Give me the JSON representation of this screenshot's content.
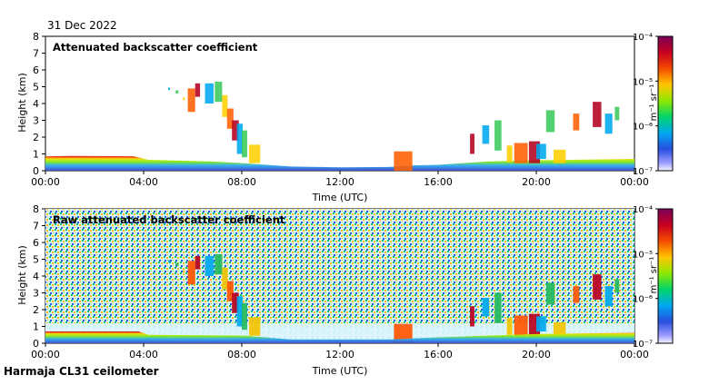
{
  "date_label": "31 Dec 2022",
  "footer_label": "Harmaja CL31 ceilometer",
  "colors": {
    "bar_stops": [
      "#7A0058",
      "#C70020",
      "#F54C00",
      "#FFC600",
      "#8EE800",
      "#00D46B",
      "#00A8F0",
      "#294FDF",
      "#9A9AFF",
      "#F6F6FF"
    ],
    "surface_band": [
      "#3A46C8",
      "#2AA8F2",
      "#7FEA18",
      "#EDE100",
      "#FF4D00",
      "#B40020"
    ]
  },
  "chart_data": [
    {
      "type": "heatmap",
      "title": "Attenuated backscatter coefficient",
      "xlabel": "Time (UTC)",
      "ylabel": "Height (km)",
      "xlim": [
        "00:00",
        "00:00"
      ],
      "ylim": [
        0,
        8
      ],
      "x_ticks": [
        "00:00",
        "04:00",
        "08:00",
        "12:00",
        "16:00",
        "20:00",
        "00:00"
      ],
      "y_ticks": [
        0,
        1,
        2,
        3,
        4,
        5,
        6,
        7,
        8
      ],
      "colorbar": {
        "label": "m⁻¹ sr⁻¹",
        "ticks": [
          "10⁻⁴",
          "10⁻⁵",
          "10⁻⁶",
          "10⁻⁷"
        ],
        "range": [
          1e-07,
          0.0001
        ],
        "scale": "log"
      },
      "structures": {
        "boundary_layer": [
          {
            "x": 0.0,
            "y": 0.85
          },
          {
            "x": 1.0,
            "y": 0.88
          },
          {
            "x": 3.6,
            "y": 0.86
          },
          {
            "x": 4.2,
            "y": 0.65
          },
          {
            "x": 6.8,
            "y": 0.55
          },
          {
            "x": 8.0,
            "y": 0.45
          },
          {
            "x": 9.0,
            "y": 0.35
          },
          {
            "x": 10.0,
            "y": 0.25
          },
          {
            "x": 12.0,
            "y": 0.2
          },
          {
            "x": 14.0,
            "y": 0.22
          },
          {
            "x": 15.0,
            "y": 0.32
          },
          {
            "x": 16.0,
            "y": 0.35
          },
          {
            "x": 18.0,
            "y": 0.55
          },
          {
            "x": 20.0,
            "y": 0.62
          },
          {
            "x": 21.5,
            "y": 0.65
          },
          {
            "x": 24.0,
            "y": 0.7
          }
        ],
        "cloud_layers": [
          {
            "x": 5.0,
            "y": 4.8,
            "w": 0.06,
            "h": 0.15
          },
          {
            "x": 5.3,
            "y": 4.6,
            "w": 0.12,
            "h": 0.18
          },
          {
            "x": 5.6,
            "y": 4.2,
            "w": 0.08,
            "h": 0.16
          },
          {
            "x": 5.8,
            "y": 3.5,
            "w": 0.3,
            "h": 1.4
          },
          {
            "x": 6.1,
            "y": 4.4,
            "w": 0.2,
            "h": 0.8
          },
          {
            "x": 6.5,
            "y": 4.0,
            "w": 0.35,
            "h": 1.2
          },
          {
            "x": 6.9,
            "y": 4.1,
            "w": 0.3,
            "h": 1.2
          },
          {
            "x": 7.2,
            "y": 3.2,
            "w": 0.22,
            "h": 1.3
          },
          {
            "x": 7.4,
            "y": 2.5,
            "w": 0.26,
            "h": 1.2
          },
          {
            "x": 7.6,
            "y": 1.8,
            "w": 0.28,
            "h": 1.2
          },
          {
            "x": 7.8,
            "y": 1.0,
            "w": 0.24,
            "h": 1.8
          },
          {
            "x": 8.0,
            "y": 0.8,
            "w": 0.22,
            "h": 1.6
          },
          {
            "x": 8.3,
            "y": 0.45,
            "w": 0.45,
            "h": 1.1
          },
          {
            "x": 14.2,
            "y": 0.0,
            "w": 0.75,
            "h": 1.15
          },
          {
            "x": 17.3,
            "y": 1.0,
            "w": 0.18,
            "h": 1.2
          },
          {
            "x": 17.8,
            "y": 1.6,
            "w": 0.28,
            "h": 1.1
          },
          {
            "x": 18.3,
            "y": 1.2,
            "w": 0.28,
            "h": 1.8
          },
          {
            "x": 18.8,
            "y": 0.5,
            "w": 0.22,
            "h": 1.0
          },
          {
            "x": 19.1,
            "y": 0.45,
            "w": 0.55,
            "h": 1.2
          },
          {
            "x": 19.7,
            "y": 0.45,
            "w": 0.45,
            "h": 1.3
          },
          {
            "x": 20.0,
            "y": 0.7,
            "w": 0.4,
            "h": 0.9
          },
          {
            "x": 20.4,
            "y": 2.3,
            "w": 0.35,
            "h": 1.3
          },
          {
            "x": 20.7,
            "y": 0.45,
            "w": 0.5,
            "h": 0.8
          },
          {
            "x": 21.5,
            "y": 2.4,
            "w": 0.25,
            "h": 1.0
          },
          {
            "x": 22.3,
            "y": 2.6,
            "w": 0.35,
            "h": 1.5
          },
          {
            "x": 22.8,
            "y": 2.2,
            "w": 0.3,
            "h": 1.2
          },
          {
            "x": 23.2,
            "y": 3.0,
            "w": 0.18,
            "h": 0.8
          }
        ]
      }
    },
    {
      "type": "heatmap",
      "title": "Raw attenuated backscatter coefficient",
      "xlabel": "Time (UTC)",
      "ylabel": "Height (km)",
      "xlim": [
        "00:00",
        "00:00"
      ],
      "ylim": [
        0,
        8
      ],
      "x_ticks": [
        "00:00",
        "04:00",
        "08:00",
        "12:00",
        "16:00",
        "20:00",
        "00:00"
      ],
      "y_ticks": [
        0,
        1,
        2,
        3,
        4,
        5,
        6,
        7,
        8
      ],
      "colorbar": {
        "label": "m⁻¹ sr⁻¹",
        "ticks": [
          "10⁻⁴",
          "10⁻⁵",
          "10⁻⁶",
          "10⁻⁷"
        ],
        "range": [
          1e-07,
          0.0001
        ],
        "scale": "log"
      },
      "structures": {
        "cloud_layers": [
          {
            "x": 5.0,
            "y": 4.8,
            "w": 0.06,
            "h": 0.15
          },
          {
            "x": 5.3,
            "y": 4.6,
            "w": 0.12,
            "h": 0.18
          },
          {
            "x": 5.6,
            "y": 4.2,
            "w": 0.08,
            "h": 0.16
          },
          {
            "x": 5.8,
            "y": 3.5,
            "w": 0.3,
            "h": 1.4
          },
          {
            "x": 6.1,
            "y": 4.4,
            "w": 0.2,
            "h": 0.8
          },
          {
            "x": 6.5,
            "y": 4.0,
            "w": 0.35,
            "h": 1.2
          },
          {
            "x": 6.9,
            "y": 4.1,
            "w": 0.3,
            "h": 1.2
          },
          {
            "x": 7.2,
            "y": 3.2,
            "w": 0.22,
            "h": 1.3
          },
          {
            "x": 7.4,
            "y": 2.5,
            "w": 0.26,
            "h": 1.2
          },
          {
            "x": 7.6,
            "y": 1.8,
            "w": 0.28,
            "h": 1.2
          },
          {
            "x": 7.8,
            "y": 1.0,
            "w": 0.24,
            "h": 1.8
          },
          {
            "x": 8.0,
            "y": 0.8,
            "w": 0.22,
            "h": 1.6
          },
          {
            "x": 8.3,
            "y": 0.45,
            "w": 0.45,
            "h": 1.1
          },
          {
            "x": 14.2,
            "y": 0.0,
            "w": 0.75,
            "h": 1.15
          },
          {
            "x": 17.3,
            "y": 1.0,
            "w": 0.18,
            "h": 1.2
          },
          {
            "x": 17.8,
            "y": 1.6,
            "w": 0.28,
            "h": 1.1
          },
          {
            "x": 18.3,
            "y": 1.2,
            "w": 0.28,
            "h": 1.8
          },
          {
            "x": 18.8,
            "y": 0.5,
            "w": 0.22,
            "h": 1.0
          },
          {
            "x": 19.1,
            "y": 0.45,
            "w": 0.55,
            "h": 1.2
          },
          {
            "x": 19.7,
            "y": 0.45,
            "w": 0.45,
            "h": 1.3
          },
          {
            "x": 20.0,
            "y": 0.7,
            "w": 0.4,
            "h": 0.9
          },
          {
            "x": 20.4,
            "y": 2.3,
            "w": 0.35,
            "h": 1.3
          },
          {
            "x": 20.7,
            "y": 0.45,
            "w": 0.5,
            "h": 0.8
          },
          {
            "x": 21.5,
            "y": 2.4,
            "w": 0.25,
            "h": 1.0
          },
          {
            "x": 22.3,
            "y": 2.6,
            "w": 0.35,
            "h": 1.5
          },
          {
            "x": 22.8,
            "y": 2.2,
            "w": 0.3,
            "h": 1.2
          },
          {
            "x": 23.2,
            "y": 3.0,
            "w": 0.18,
            "h": 0.8
          }
        ]
      }
    }
  ]
}
